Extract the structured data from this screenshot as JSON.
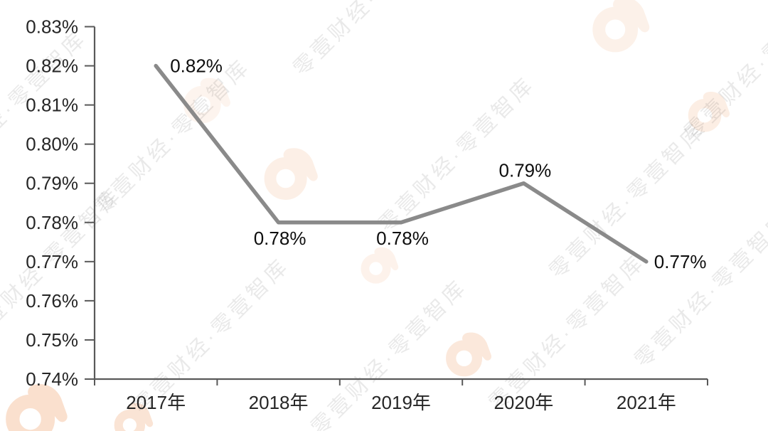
{
  "chart_data": {
    "type": "line",
    "title": "",
    "xlabel": "",
    "ylabel": "",
    "unit": "%",
    "categories": [
      "2017年",
      "2018年",
      "2019年",
      "2020年",
      "2021年"
    ],
    "series": [
      {
        "name": "",
        "values": [
          0.82,
          0.78,
          0.78,
          0.79,
          0.77
        ]
      }
    ],
    "value_labels": [
      "0.82%",
      "0.78%",
      "0.78%",
      "0.79%",
      "0.77%"
    ],
    "y_ticks": [
      "0.83%",
      "0.82%",
      "0.81%",
      "0.80%",
      "0.79%",
      "0.78%",
      "0.77%",
      "0.76%",
      "0.75%",
      "0.74%"
    ],
    "ylim": [
      0.74,
      0.83
    ],
    "y_step": 0.01,
    "grid": false,
    "legend_position": "none",
    "line_color": "#8a8a8a",
    "axis_color": "#595959",
    "tick_label_color": "#262626",
    "data_label_color": "#0d0d0d",
    "label_placement": [
      "right",
      "below",
      "below",
      "above",
      "right"
    ]
  },
  "watermark": {
    "text": "零壹财经·零壹智库",
    "logo_name": "01caijing-logo",
    "logo_color": "#ef9b60"
  }
}
